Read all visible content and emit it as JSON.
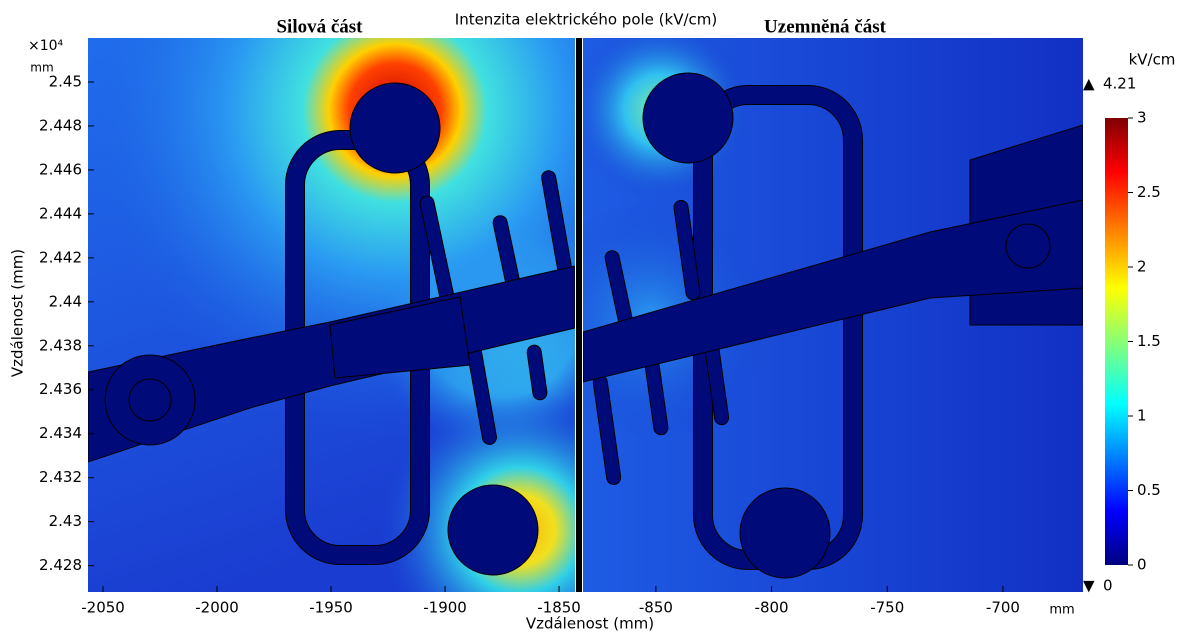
{
  "chart_data": {
    "type": "field",
    "title": "Intenzita elektrického pole (kV/cm)",
    "xlabel": "Vzdálenost (mm)",
    "ylabel": "Vzdálenost (mm)",
    "x_unit": "mm",
    "y_unit": "mm",
    "y_multiplier": "×10⁴",
    "ylim": [
      2.4268,
      2.452
    ],
    "yticks": [
      2.428,
      2.43,
      2.432,
      2.434,
      2.436,
      2.438,
      2.44,
      2.442,
      2.444,
      2.446,
      2.448,
      2.45
    ],
    "panels": [
      {
        "title": "Silová část",
        "xlim": [
          -2056.6,
          -1843
        ],
        "xticks": [
          -2050,
          -2000,
          -1950,
          -1900,
          -1850
        ]
      },
      {
        "title": "Uzemněná část",
        "xlim": [
          -881.5,
          -665.4
        ],
        "xticks": [
          -850,
          -800,
          -750,
          -700
        ]
      }
    ],
    "colorbar": {
      "unit": "kV/cm",
      "lim": [
        0,
        3
      ],
      "ticks": [
        0,
        0.5,
        1,
        1.5,
        2,
        2.5,
        3
      ],
      "max": 4.21,
      "min": 0
    }
  }
}
